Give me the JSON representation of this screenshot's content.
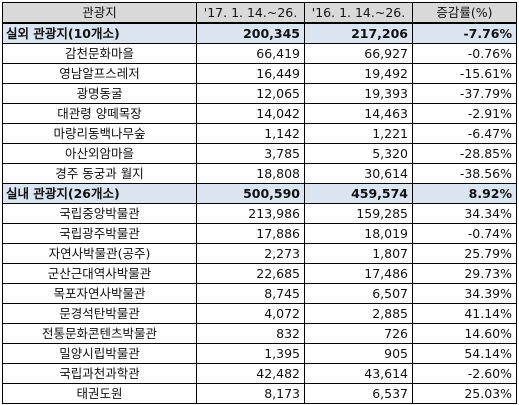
{
  "headers": [
    "관광지",
    "'17. 1. 14.~26.",
    "'16. 1. 14.~26.",
    "증감률(%)"
  ],
  "groups": [
    {
      "name": "실외 관광지(10개소)",
      "y2017": "200,345",
      "y2016": "217,206",
      "change": "-7.76%",
      "rows": [
        {
          "name": "감천문화마을",
          "y2017": "66,419",
          "y2016": "66,927",
          "change": "-0.76%"
        },
        {
          "name": "영남알프스레저",
          "y2017": "16,449",
          "y2016": "19,492",
          "change": "-15.61%"
        },
        {
          "name": "광명동굴",
          "y2017": "12,065",
          "y2016": "19,393",
          "change": "-37.79%"
        },
        {
          "name": "대관령 양떼목장",
          "y2017": "14,042",
          "y2016": "14,463",
          "change": "-2.91%"
        },
        {
          "name": "마량리동백나무숲",
          "y2017": "1,142",
          "y2016": "1,221",
          "change": "-6.47%"
        },
        {
          "name": "아산외암마을",
          "y2017": "3,785",
          "y2016": "5,320",
          "change": "-28.85%"
        },
        {
          "name": "경주 동궁과 월지",
          "y2017": "18,808",
          "y2016": "30,614",
          "change": "-38.56%"
        }
      ]
    },
    {
      "name": "실내 관광지(26개소)",
      "y2017": "500,590",
      "y2016": "459,574",
      "change": "8.92%",
      "rows": [
        {
          "name": "국립중앙박물관",
          "y2017": "213,986",
          "y2016": "159,285",
          "change": "34.34%"
        },
        {
          "name": "국립광주박물관",
          "y2017": "17,886",
          "y2016": "18,019",
          "change": "-0.74%"
        },
        {
          "name": "자연사박물관(공주)",
          "y2017": "2,273",
          "y2016": "1,807",
          "change": "25.79%"
        },
        {
          "name": "군산근대역사박물관",
          "y2017": "22,685",
          "y2016": "17,486",
          "change": "29.73%"
        },
        {
          "name": "목포자연사박물관",
          "y2017": "8,745",
          "y2016": "6,507",
          "change": "34.39%"
        },
        {
          "name": "문경석탄박물관",
          "y2017": "4,072",
          "y2016": "2,885",
          "change": "41.14%"
        },
        {
          "name": "전통문화콘텐츠박물관",
          "y2017": "832",
          "y2016": "726",
          "change": "14.60%"
        },
        {
          "name": "밀양시립박물관",
          "y2017": "1,395",
          "y2016": "905",
          "change": "54.14%"
        },
        {
          "name": "국립과천과학관",
          "y2017": "42,482",
          "y2016": "43,614",
          "change": "-2.60%"
        },
        {
          "name": "태권도원",
          "y2017": "8,173",
          "y2016": "6,537",
          "change": "25.03%"
        }
      ]
    }
  ]
}
